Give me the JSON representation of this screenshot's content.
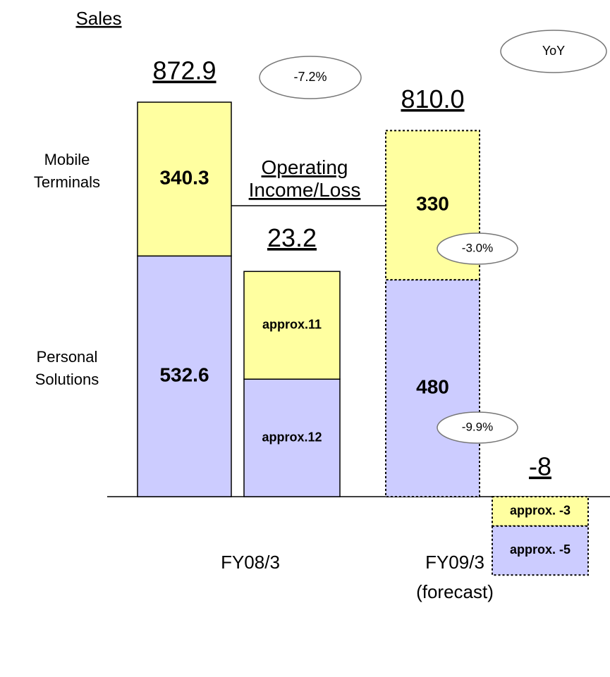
{
  "chart_data": [
    {
      "type": "stacked_bar",
      "title": "Sales",
      "categories": [
        "FY08/3",
        "FY09/3 (forecast)"
      ],
      "series": [
        {
          "name": "Mobile Terminals",
          "color": "#ffffa0",
          "values": [
            340.3,
            330
          ]
        },
        {
          "name": "Personal Solutions",
          "color": "#ccccff",
          "values": [
            532.6,
            480
          ]
        }
      ],
      "totals": [
        872.9,
        810
      ],
      "total_labels": [
        "872.9",
        "810.0"
      ],
      "dashed": [
        false,
        true
      ],
      "yoy_label": "YoY",
      "yoy": [
        "-7.2%",
        "-3.0%",
        "-9.9%"
      ]
    },
    {
      "type": "stacked_bar",
      "title": "Operating Income/Loss",
      "series": [
        {
          "color": "#ffffa0",
          "values": [
            11,
            -3
          ],
          "value_labels": [
            "approx.11",
            "approx. -3"
          ]
        },
        {
          "color": "#ccccff",
          "values": [
            12,
            -5
          ],
          "value_labels": [
            "approx.12",
            "approx. -5"
          ]
        }
      ],
      "totals": [
        23.2,
        -8
      ],
      "dashed": [
        false,
        true
      ]
    }
  ]
}
